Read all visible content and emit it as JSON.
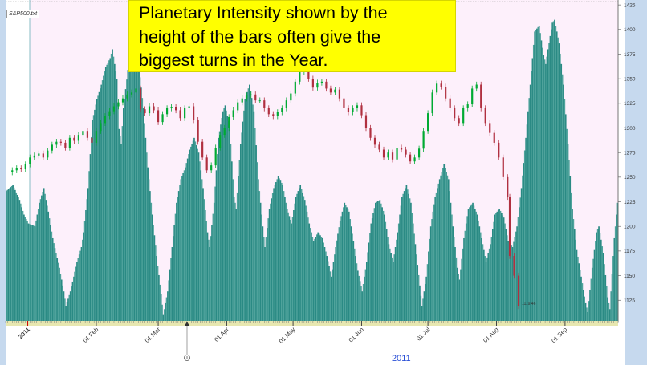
{
  "annotation": {
    "text": "Planetary Intensity shown by the\nheight of the bars often give the\nbiggest turns in the Year."
  },
  "file_label": "S&P500.txt",
  "chart_data": {
    "type": "bar",
    "title": "",
    "xlabel": "2011",
    "ylabel": "",
    "colors": {
      "bars": "#2a8a84",
      "bars_light": "#4fa39c",
      "up_candle": "#00aa33",
      "down_candle": "#b03040",
      "background": "#fdf0fb",
      "year_tick": "#cc0000"
    },
    "y_axis": {
      "position": "right",
      "ylim": [
        1104,
        1430
      ],
      "ticks": [
        1125,
        1150,
        1175,
        1200,
        1225,
        1250,
        1275,
        1300,
        1325,
        1350,
        1375,
        1400,
        1425
      ]
    },
    "x_axis": {
      "ticks": [
        {
          "label": "2011",
          "day": 0,
          "highlight": true
        },
        {
          "label": "01 Feb",
          "day": 31,
          "highlight": false
        },
        {
          "label": "01 Mar",
          "day": 59,
          "highlight": false
        },
        {
          "label": "01 Apr",
          "day": 90,
          "highlight": false
        },
        {
          "label": "01 May",
          "day": 120,
          "highlight": false
        },
        {
          "label": "01 Jun",
          "day": 151,
          "highlight": false
        },
        {
          "label": "01 Jul",
          "day": 181,
          "highlight": false
        },
        {
          "label": "01 Aug",
          "day": 212,
          "highlight": false
        },
        {
          "label": "01 Sep",
          "day": 243,
          "highlight": false
        }
      ],
      "day_range": [
        -10,
        267
      ]
    },
    "callout_label": "1119.46",
    "intensity_series": {
      "name": "Planetary Intensity",
      "scale": [
        0,
        1
      ],
      "keypoints": [
        [
          -10,
          0.44
        ],
        [
          -7,
          0.46
        ],
        [
          -4,
          0.41
        ],
        [
          -2,
          0.36
        ],
        [
          0,
          0.33
        ],
        [
          3,
          0.32
        ],
        [
          5,
          0.4
        ],
        [
          7,
          0.45
        ],
        [
          9,
          0.37
        ],
        [
          11,
          0.28
        ],
        [
          14,
          0.18
        ],
        [
          16,
          0.1
        ],
        [
          17,
          0.05
        ],
        [
          19,
          0.1
        ],
        [
          22,
          0.2
        ],
        [
          24,
          0.25
        ],
        [
          25,
          0.3
        ],
        [
          27,
          0.45
        ],
        [
          29,
          0.68
        ],
        [
          31,
          0.75
        ],
        [
          33,
          0.8
        ],
        [
          35,
          0.86
        ],
        [
          37,
          0.89
        ],
        [
          38,
          0.92
        ],
        [
          40,
          0.82
        ],
        [
          41,
          0.65
        ],
        [
          42,
          0.6
        ],
        [
          43,
          0.72
        ],
        [
          45,
          0.85
        ],
        [
          47,
          0.93
        ],
        [
          49,
          0.9
        ],
        [
          50,
          0.86
        ],
        [
          52,
          0.72
        ],
        [
          54,
          0.52
        ],
        [
          56,
          0.36
        ],
        [
          58,
          0.22
        ],
        [
          60,
          0.09
        ],
        [
          61,
          0.02
        ],
        [
          63,
          0.1
        ],
        [
          65,
          0.25
        ],
        [
          67,
          0.4
        ],
        [
          69,
          0.48
        ],
        [
          71,
          0.52
        ],
        [
          73,
          0.58
        ],
        [
          75,
          0.62
        ],
        [
          77,
          0.57
        ],
        [
          79,
          0.45
        ],
        [
          81,
          0.3
        ],
        [
          82,
          0.25
        ],
        [
          84,
          0.4
        ],
        [
          86,
          0.62
        ],
        [
          88,
          0.71
        ],
        [
          89,
          0.73
        ],
        [
          91,
          0.66
        ],
        [
          93,
          0.42
        ],
        [
          94,
          0.38
        ],
        [
          96,
          0.6
        ],
        [
          98,
          0.75
        ],
        [
          100,
          0.8
        ],
        [
          102,
          0.71
        ],
        [
          104,
          0.48
        ],
        [
          106,
          0.32
        ],
        [
          107,
          0.25
        ],
        [
          109,
          0.38
        ],
        [
          111,
          0.45
        ],
        [
          113,
          0.49
        ],
        [
          115,
          0.46
        ],
        [
          117,
          0.38
        ],
        [
          119,
          0.33
        ],
        [
          121,
          0.42
        ],
        [
          123,
          0.46
        ],
        [
          125,
          0.41
        ],
        [
          127,
          0.33
        ],
        [
          129,
          0.27
        ],
        [
          131,
          0.3
        ],
        [
          133,
          0.28
        ],
        [
          135,
          0.22
        ],
        [
          137,
          0.15
        ],
        [
          139,
          0.25
        ],
        [
          141,
          0.34
        ],
        [
          143,
          0.4
        ],
        [
          145,
          0.37
        ],
        [
          147,
          0.27
        ],
        [
          149,
          0.17
        ],
        [
          151,
          0.1
        ],
        [
          153,
          0.2
        ],
        [
          155,
          0.33
        ],
        [
          157,
          0.4
        ],
        [
          159,
          0.41
        ],
        [
          161,
          0.36
        ],
        [
          163,
          0.26
        ],
        [
          165,
          0.2
        ],
        [
          167,
          0.3
        ],
        [
          169,
          0.42
        ],
        [
          171,
          0.46
        ],
        [
          173,
          0.4
        ],
        [
          175,
          0.26
        ],
        [
          177,
          0.12
        ],
        [
          178,
          0.05
        ],
        [
          180,
          0.15
        ],
        [
          182,
          0.32
        ],
        [
          184,
          0.42
        ],
        [
          186,
          0.48
        ],
        [
          188,
          0.53
        ],
        [
          190,
          0.48
        ],
        [
          192,
          0.32
        ],
        [
          194,
          0.18
        ],
        [
          195,
          0.14
        ],
        [
          197,
          0.28
        ],
        [
          199,
          0.38
        ],
        [
          201,
          0.4
        ],
        [
          203,
          0.36
        ],
        [
          205,
          0.28
        ],
        [
          207,
          0.2
        ],
        [
          209,
          0.26
        ],
        [
          211,
          0.36
        ],
        [
          213,
          0.38
        ],
        [
          215,
          0.35
        ],
        [
          217,
          0.27
        ],
        [
          219,
          0.25
        ],
        [
          221,
          0.32
        ],
        [
          223,
          0.45
        ],
        [
          225,
          0.62
        ],
        [
          227,
          0.8
        ],
        [
          229,
          0.98
        ],
        [
          231,
          1.0
        ],
        [
          233,
          0.9
        ],
        [
          234,
          0.87
        ],
        [
          235,
          0.92
        ],
        [
          237,
          1.01
        ],
        [
          238,
          1.02
        ],
        [
          240,
          0.94
        ],
        [
          242,
          0.8
        ],
        [
          244,
          0.6
        ],
        [
          246,
          0.38
        ],
        [
          248,
          0.24
        ],
        [
          250,
          0.15
        ],
        [
          252,
          0.06
        ],
        [
          253,
          0.03
        ],
        [
          255,
          0.18
        ],
        [
          257,
          0.3
        ],
        [
          258,
          0.32
        ],
        [
          260,
          0.23
        ],
        [
          262,
          0.08
        ],
        [
          263,
          0.04
        ],
        [
          265,
          0.28
        ],
        [
          267,
          0.44
        ]
      ]
    },
    "candles": {
      "name": "S&P500",
      "closes": [
        [
          -7,
          1257
        ],
        [
          -5,
          1259
        ],
        [
          -3,
          1258
        ],
        [
          -1,
          1263
        ],
        [
          1,
          1270
        ],
        [
          3,
          1272
        ],
        [
          5,
          1274
        ],
        [
          7,
          1270
        ],
        [
          9,
          1277
        ],
        [
          11,
          1283
        ],
        [
          13,
          1286
        ],
        [
          15,
          1285
        ],
        [
          17,
          1280
        ],
        [
          19,
          1290
        ],
        [
          21,
          1287
        ],
        [
          23,
          1293
        ],
        [
          25,
          1297
        ],
        [
          27,
          1290
        ],
        [
          29,
          1285
        ],
        [
          31,
          1297
        ],
        [
          33,
          1305
        ],
        [
          35,
          1312
        ],
        [
          37,
          1317
        ],
        [
          39,
          1322
        ],
        [
          41,
          1326
        ],
        [
          43,
          1330
        ],
        [
          45,
          1334
        ],
        [
          47,
          1336
        ],
        [
          49,
          1340
        ],
        [
          51,
          1319
        ],
        [
          53,
          1315
        ],
        [
          55,
          1322
        ],
        [
          57,
          1318
        ],
        [
          59,
          1306
        ],
        [
          61,
          1314
        ],
        [
          63,
          1320
        ],
        [
          65,
          1321
        ],
        [
          67,
          1318
        ],
        [
          69,
          1310
        ],
        [
          71,
          1320
        ],
        [
          73,
          1322
        ],
        [
          75,
          1308
        ],
        [
          77,
          1286
        ],
        [
          79,
          1270
        ],
        [
          81,
          1257
        ],
        [
          83,
          1262
        ],
        [
          85,
          1280
        ],
        [
          87,
          1293
        ],
        [
          89,
          1300
        ],
        [
          91,
          1311
        ],
        [
          93,
          1318
        ],
        [
          95,
          1326
        ],
        [
          97,
          1330
        ],
        [
          99,
          1333
        ],
        [
          101,
          1334
        ],
        [
          103,
          1328
        ],
        [
          105,
          1328
        ],
        [
          107,
          1320
        ],
        [
          109,
          1314
        ],
        [
          111,
          1312
        ],
        [
          113,
          1316
        ],
        [
          115,
          1320
        ],
        [
          117,
          1328
        ],
        [
          119,
          1335
        ],
        [
          121,
          1347
        ],
        [
          123,
          1357
        ],
        [
          125,
          1362
        ],
        [
          127,
          1350
        ],
        [
          129,
          1341
        ],
        [
          131,
          1346
        ],
        [
          133,
          1347
        ],
        [
          135,
          1340
        ],
        [
          137,
          1336
        ],
        [
          139,
          1339
        ],
        [
          141,
          1330
        ],
        [
          143,
          1320
        ],
        [
          145,
          1316
        ],
        [
          147,
          1320
        ],
        [
          149,
          1323
        ],
        [
          151,
          1313
        ],
        [
          153,
          1300
        ],
        [
          155,
          1290
        ],
        [
          157,
          1283
        ],
        [
          159,
          1278
        ],
        [
          161,
          1270
        ],
        [
          163,
          1275
        ],
        [
          165,
          1268
        ],
        [
          167,
          1280
        ],
        [
          169,
          1278
        ],
        [
          171,
          1273
        ],
        [
          173,
          1266
        ],
        [
          175,
          1270
        ],
        [
          177,
          1279
        ],
        [
          179,
          1297
        ],
        [
          181,
          1315
        ],
        [
          183,
          1336
        ],
        [
          185,
          1345
        ],
        [
          187,
          1342
        ],
        [
          189,
          1330
        ],
        [
          191,
          1320
        ],
        [
          193,
          1310
        ],
        [
          195,
          1305
        ],
        [
          197,
          1320
        ],
        [
          199,
          1324
        ],
        [
          201,
          1340
        ],
        [
          203,
          1344
        ],
        [
          205,
          1320
        ],
        [
          207,
          1305
        ],
        [
          209,
          1295
        ],
        [
          211,
          1285
        ],
        [
          213,
          1270
        ],
        [
          215,
          1250
        ],
        [
          217,
          1230
        ],
        [
          218,
          1170
        ],
        [
          220,
          1150
        ],
        [
          222,
          1119
        ]
      ]
    }
  }
}
